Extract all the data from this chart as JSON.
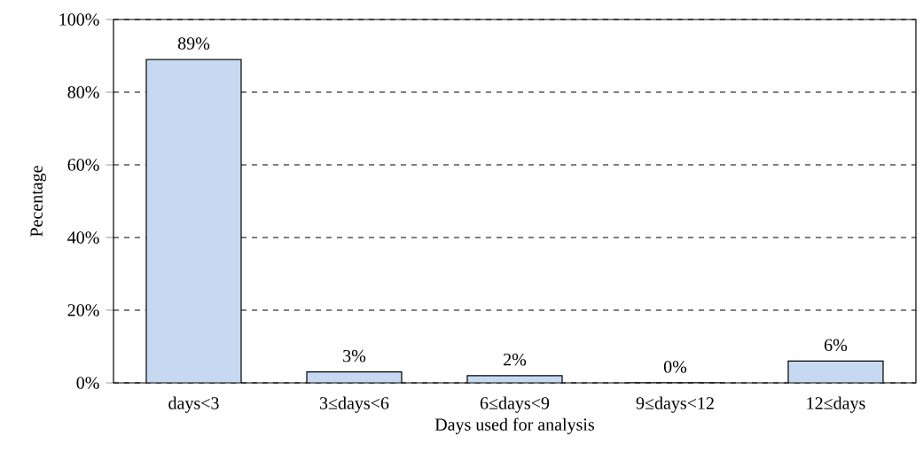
{
  "chart_data": {
    "type": "bar",
    "xlabel": "Days used for analysis",
    "ylabel": "Pecentage",
    "categories": [
      "days<3",
      "3≤days<6",
      "6≤days<9",
      "9≤days<12",
      "12≤days"
    ],
    "values": [
      89,
      3,
      2,
      0,
      6
    ],
    "value_labels": [
      "89%",
      "3%",
      "2%",
      "0%",
      "6%"
    ],
    "color": "#c6d9f1",
    "ylim": [
      0,
      100
    ],
    "yticks": [
      {
        "value": 0,
        "label": "0%"
      },
      {
        "value": 20,
        "label": "20%"
      },
      {
        "value": 40,
        "label": "40%"
      },
      {
        "value": 60,
        "label": "60%"
      },
      {
        "value": 80,
        "label": "80%"
      },
      {
        "value": 100,
        "label": "100%"
      }
    ],
    "grid": "y"
  }
}
